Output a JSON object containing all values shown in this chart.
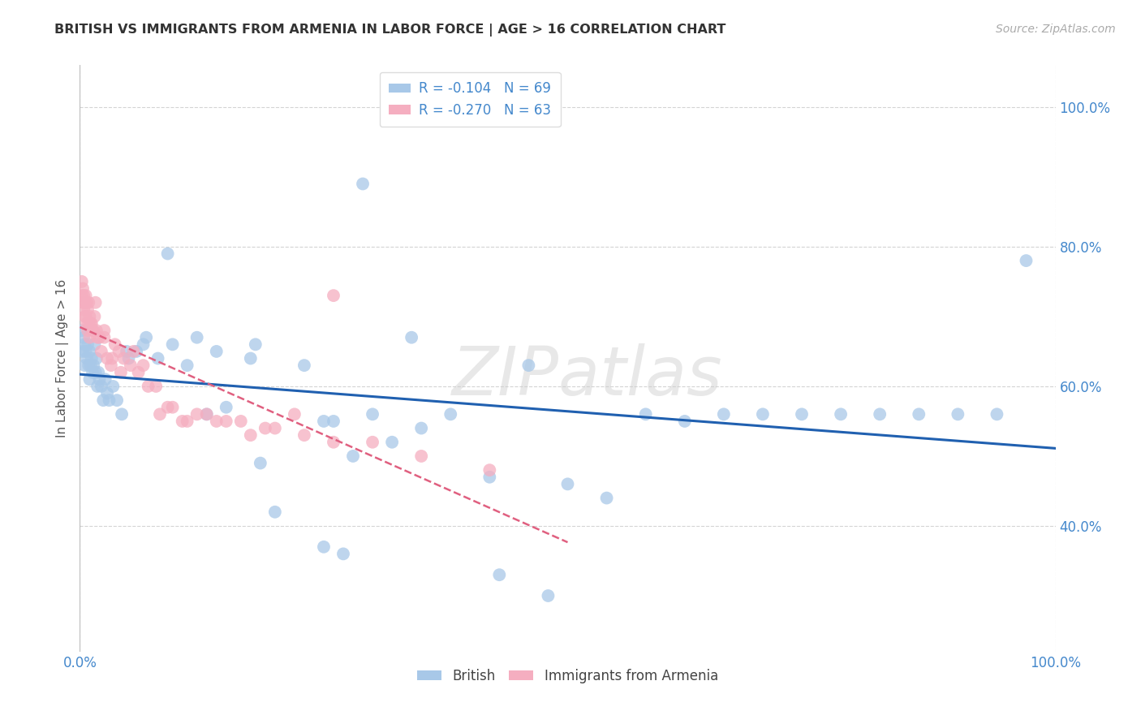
{
  "title": "BRITISH VS IMMIGRANTS FROM ARMENIA IN LABOR FORCE | AGE > 16 CORRELATION CHART",
  "source": "Source: ZipAtlas.com",
  "ylabel": "In Labor Force | Age > 16",
  "xlim": [
    0.0,
    1.0
  ],
  "ylim": [
    0.22,
    1.06
  ],
  "ytick_labels": [
    "40.0%",
    "60.0%",
    "80.0%",
    "100.0%"
  ],
  "ytick_values": [
    0.4,
    0.6,
    0.8,
    1.0
  ],
  "xtick_labels": [
    "0.0%",
    "100.0%"
  ],
  "xtick_values": [
    0.0,
    1.0
  ],
  "british_R": "-0.104",
  "british_N": "69",
  "armenia_R": "-0.270",
  "armenia_N": "63",
  "british_color": "#a8c8e8",
  "armenia_color": "#f5aec0",
  "british_line_color": "#2060b0",
  "armenia_line_color": "#e06080",
  "watermark": "ZIPatlas",
  "british_x": [
    0.002,
    0.003,
    0.004,
    0.005,
    0.005,
    0.006,
    0.007,
    0.008,
    0.009,
    0.01,
    0.01,
    0.011,
    0.012,
    0.013,
    0.014,
    0.015,
    0.016,
    0.017,
    0.018,
    0.019,
    0.02,
    0.022,
    0.024,
    0.026,
    0.028,
    0.03,
    0.034,
    0.038,
    0.043,
    0.05,
    0.058,
    0.068,
    0.08,
    0.095,
    0.11,
    0.13,
    0.15,
    0.175,
    0.2,
    0.23,
    0.26,
    0.3,
    0.34,
    0.38,
    0.42,
    0.46,
    0.5,
    0.54,
    0.58,
    0.62,
    0.66,
    0.7,
    0.74,
    0.78,
    0.82,
    0.86,
    0.9,
    0.94,
    0.97,
    0.28,
    0.32,
    0.35,
    0.25,
    0.18,
    0.14,
    0.12,
    0.09,
    0.065,
    0.048
  ],
  "british_y": [
    0.68,
    0.65,
    0.67,
    0.66,
    0.63,
    0.65,
    0.64,
    0.66,
    0.63,
    0.65,
    0.61,
    0.63,
    0.64,
    0.62,
    0.63,
    0.66,
    0.62,
    0.64,
    0.6,
    0.62,
    0.61,
    0.6,
    0.58,
    0.61,
    0.59,
    0.58,
    0.6,
    0.58,
    0.56,
    0.64,
    0.65,
    0.67,
    0.64,
    0.66,
    0.63,
    0.56,
    0.57,
    0.64,
    0.42,
    0.63,
    0.55,
    0.56,
    0.67,
    0.56,
    0.47,
    0.63,
    0.46,
    0.44,
    0.56,
    0.55,
    0.56,
    0.56,
    0.56,
    0.56,
    0.56,
    0.56,
    0.56,
    0.56,
    0.78,
    0.5,
    0.52,
    0.54,
    0.55,
    0.66,
    0.65,
    0.67,
    0.79,
    0.66,
    0.65
  ],
  "british_y_outliers": [
    0.89,
    0.49,
    0.37,
    0.36,
    0.33,
    0.3
  ],
  "british_x_outliers": [
    0.29,
    0.185,
    0.25,
    0.27,
    0.43,
    0.48
  ],
  "armenia_x": [
    0.002,
    0.002,
    0.003,
    0.003,
    0.004,
    0.004,
    0.005,
    0.005,
    0.006,
    0.006,
    0.007,
    0.007,
    0.008,
    0.008,
    0.009,
    0.009,
    0.01,
    0.01,
    0.011,
    0.012,
    0.013,
    0.014,
    0.015,
    0.016,
    0.017,
    0.018,
    0.02,
    0.022,
    0.025,
    0.028,
    0.032,
    0.036,
    0.04,
    0.045,
    0.052,
    0.06,
    0.07,
    0.082,
    0.095,
    0.11,
    0.13,
    0.15,
    0.175,
    0.2,
    0.23,
    0.26,
    0.3,
    0.35,
    0.42,
    0.025,
    0.033,
    0.042,
    0.055,
    0.065,
    0.078,
    0.09,
    0.105,
    0.12,
    0.14,
    0.165,
    0.19,
    0.22,
    0.26
  ],
  "armenia_y": [
    0.73,
    0.75,
    0.72,
    0.74,
    0.71,
    0.73,
    0.72,
    0.7,
    0.73,
    0.7,
    0.72,
    0.69,
    0.71,
    0.68,
    0.72,
    0.69,
    0.7,
    0.67,
    0.69,
    0.69,
    0.68,
    0.68,
    0.7,
    0.72,
    0.68,
    0.67,
    0.67,
    0.65,
    0.68,
    0.64,
    0.63,
    0.66,
    0.65,
    0.64,
    0.63,
    0.62,
    0.6,
    0.56,
    0.57,
    0.55,
    0.56,
    0.55,
    0.53,
    0.54,
    0.53,
    0.52,
    0.52,
    0.5,
    0.48,
    0.67,
    0.64,
    0.62,
    0.65,
    0.63,
    0.6,
    0.57,
    0.55,
    0.56,
    0.55,
    0.55,
    0.54,
    0.56,
    0.73
  ]
}
